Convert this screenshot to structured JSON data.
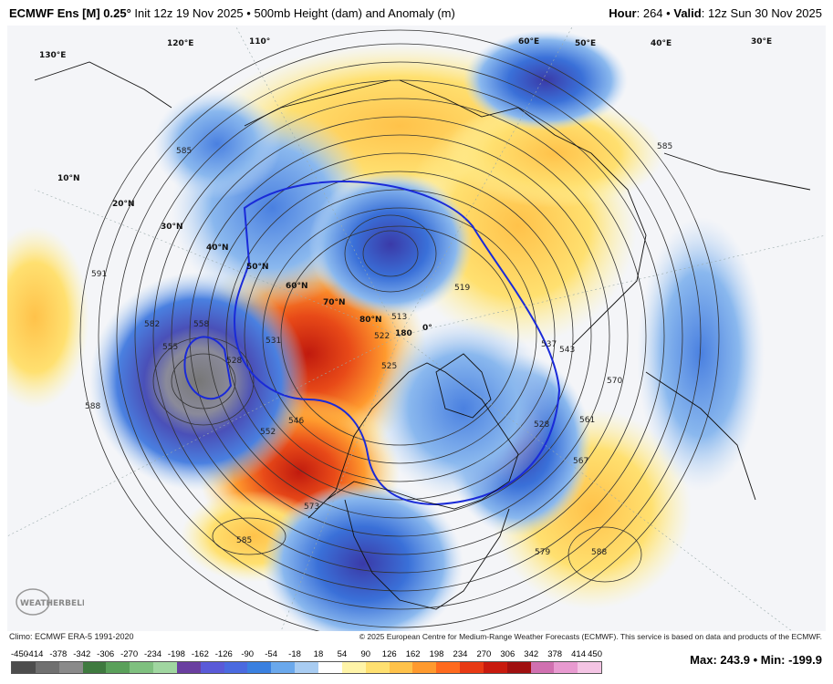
{
  "header": {
    "model": "ECMWF Ens [M] 0.25",
    "degree": "°",
    "init": "Init 12z 19 Nov 2025",
    "bullet": "•",
    "product": "500mb Height (dam) and Anomaly (m)",
    "hour_label": "Hour",
    "hour_value": "264",
    "valid_label": "Valid",
    "valid_value": "12z Sun 30 Nov 2025"
  },
  "footer": {
    "climo": "Climo: ECMWF ERA-5 1991-2020",
    "copyright": "© 2025 European Centre for Medium-Range Weather Forecasts (ECMWF). This service is based on data and products of the ECMWF.",
    "max_label": "Max",
    "max_value": "243.9",
    "min_label": "Min",
    "min_value": "-199.9"
  },
  "logo": {
    "text": "WEATHERBELL"
  },
  "colorbar": {
    "ticks": [
      "-450",
      "-414",
      "-378",
      "-342",
      "-306",
      "-270",
      "-234",
      "-198",
      "-162",
      "-126",
      "-90",
      "-54",
      "-18",
      "18",
      "54",
      "90",
      "126",
      "162",
      "198",
      "234",
      "270",
      "306",
      "342",
      "378",
      "414",
      "450"
    ],
    "colors": [
      "#4d4d4d",
      "#707070",
      "#8a8a8a",
      "#3f7a3f",
      "#5aa05a",
      "#7fc07f",
      "#a0d6a0",
      "#6a3fa0",
      "#5a5ad8",
      "#4a6ae0",
      "#3a80e0",
      "#6aa8ec",
      "#a8ccf2",
      "#ffffff",
      "#fff4a8",
      "#ffe070",
      "#ffc24a",
      "#ff9a2e",
      "#ff6a1e",
      "#e83a14",
      "#c81a0e",
      "#a01010",
      "#d070b0",
      "#e89ad0",
      "#f4c4e4"
    ]
  },
  "map_labels": {
    "latitudes": [
      "10°N",
      "20°N",
      "30°N",
      "40°N",
      "50°N",
      "60°N",
      "70°N",
      "80°N"
    ],
    "longitudes": [
      "180",
      "0°",
      "130°E",
      "120°E",
      "110°",
      "60°E",
      "50°E",
      "40°E",
      "30°E"
    ],
    "contours": [
      "585",
      "591",
      "582",
      "588",
      "558",
      "555",
      "528",
      "531",
      "546",
      "552",
      "573",
      "585",
      "513",
      "519",
      "522",
      "525",
      "537",
      "543",
      "528",
      "561",
      "570",
      "579",
      "588",
      "585",
      "567"
    ]
  },
  "legend_colors": {
    "positive": "#ff6a1e",
    "negative": "#3a6ad8",
    "contour": "#333333",
    "highlight": "#1a2ad8"
  }
}
